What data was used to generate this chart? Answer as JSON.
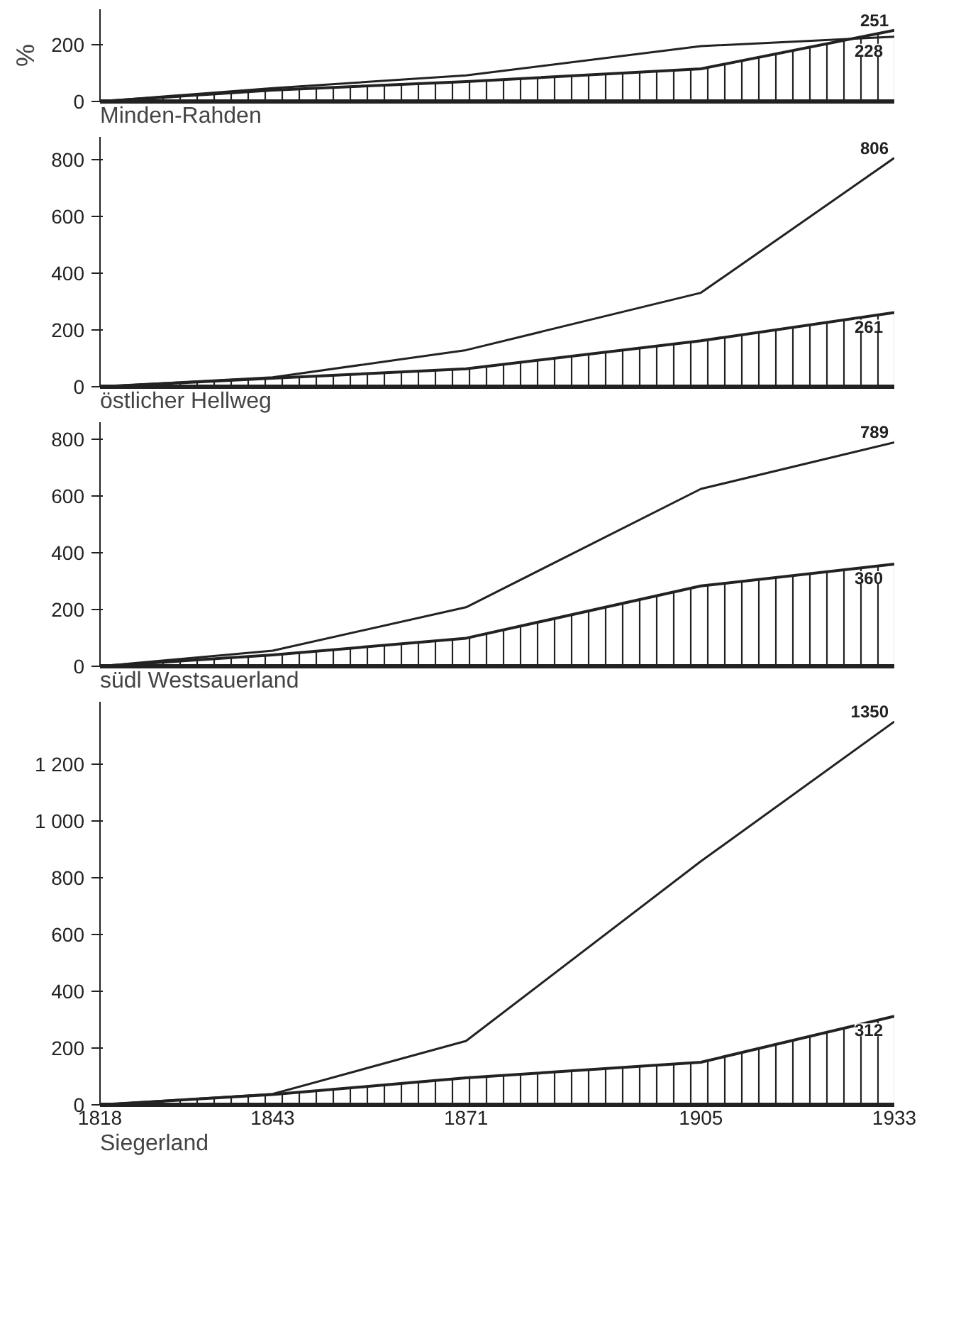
{
  "chart_data": [
    {
      "type": "line",
      "title": "Minden-Rahden",
      "ylabel": "%",
      "x": [
        1818,
        1843,
        1871,
        1905,
        1933
      ],
      "xlim": [
        1818,
        1933
      ],
      "ylim": [
        0,
        325
      ],
      "yticks": [
        0,
        200
      ],
      "tick_labels": "y",
      "grid": false,
      "series": [
        {
          "color": "#222222",
          "values": [
            0,
            47,
            92,
            195,
            228
          ],
          "value_labels": [
            null,
            null,
            null,
            null,
            "228"
          ]
        },
        {
          "type": "area",
          "color": "#222222",
          "values": [
            0,
            40,
            70,
            115,
            251
          ],
          "value_labels": [
            null,
            null,
            null,
            null,
            "251"
          ]
        }
      ]
    },
    {
      "type": "line",
      "title": "östlicher Hellweg",
      "x": [
        1818,
        1843,
        1871,
        1905,
        1933
      ],
      "xlim": [
        1818,
        1933
      ],
      "ylim": [
        0,
        880
      ],
      "yticks": [
        0,
        200,
        400,
        600,
        800
      ],
      "tick_labels": "y",
      "grid": false,
      "series": [
        {
          "color": "#222222",
          "values": [
            0,
            33,
            129,
            331,
            806
          ],
          "value_labels": [
            null,
            null,
            null,
            null,
            "806"
          ]
        },
        {
          "type": "area",
          "color": "#222222",
          "values": [
            0,
            30,
            63,
            162,
            261
          ],
          "value_labels": [
            null,
            null,
            null,
            null,
            "261"
          ]
        }
      ]
    },
    {
      "type": "line",
      "title": "südl Westsauerland",
      "x": [
        1818,
        1843,
        1871,
        1905,
        1933
      ],
      "xlim": [
        1818,
        1933
      ],
      "ylim": [
        0,
        860
      ],
      "yticks": [
        0,
        200,
        400,
        600,
        800
      ],
      "tick_labels": "y",
      "grid": false,
      "series": [
        {
          "color": "#222222",
          "values": [
            0,
            55,
            208,
            625,
            789
          ],
          "value_labels": [
            null,
            null,
            null,
            null,
            "789"
          ]
        },
        {
          "type": "area",
          "color": "#222222",
          "values": [
            0,
            40,
            99,
            283,
            360
          ],
          "value_labels": [
            null,
            null,
            null,
            null,
            "360"
          ]
        }
      ]
    },
    {
      "type": "line",
      "title": "Siegerland",
      "x": [
        1818,
        1843,
        1871,
        1905,
        1933
      ],
      "xlim": [
        1818,
        1933
      ],
      "xticks": [
        1818,
        1843,
        1871,
        1905,
        1933
      ],
      "ylim": [
        0,
        1420
      ],
      "yticks": [
        0,
        200,
        400,
        600,
        800,
        {
          "value": 1000,
          "label": "1 000"
        },
        {
          "value": 1200,
          "label": "1 200"
        }
      ],
      "grid": false,
      "series": [
        {
          "color": "#222222",
          "values": [
            0,
            38,
            225,
            858,
            1350
          ],
          "value_labels": [
            null,
            null,
            null,
            null,
            "1350"
          ]
        },
        {
          "type": "area",
          "color": "#222222",
          "values": [
            0,
            36,
            95,
            150,
            312
          ],
          "value_labels": [
            null,
            null,
            null,
            null,
            "312"
          ]
        }
      ]
    }
  ]
}
